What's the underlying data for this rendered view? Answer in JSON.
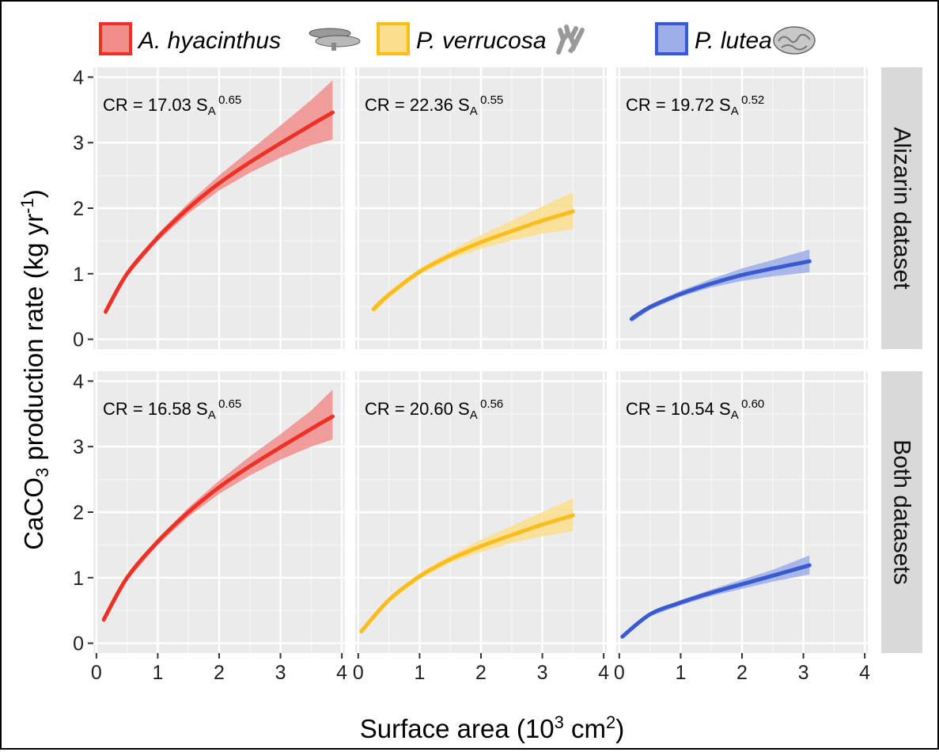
{
  "chart_data": {
    "type": "line",
    "layout": "faceted grid, 2 rows x 3 columns",
    "xlabel": "Surface area (10",
    "xlabel_sup": "3",
    "xlabel_mid": " cm",
    "xlabel_sup2": "2",
    "xlabel_end": ")",
    "ylabel_pre": "CaCO",
    "ylabel_sub": "3",
    "ylabel_mid": " production rate (kg yr",
    "ylabel_sup": "-1",
    "ylabel_end": ")",
    "xlim": [
      -0.05,
      4.05
    ],
    "ylim": [
      -0.15,
      4.15
    ],
    "xticks": [
      0,
      1,
      2,
      3,
      4
    ],
    "yticks": [
      0,
      1,
      2,
      3,
      4
    ],
    "tick_labels": [
      "0",
      "1",
      "2",
      "3",
      "4"
    ],
    "grid": true,
    "legend_position": "top",
    "legend": [
      {
        "label": "A. hyacinthus",
        "color": "#ee3126",
        "fill": "#f08e8c",
        "icon": "table-coral-icon"
      },
      {
        "label": "P. verrucosa",
        "color": "#fbbd1d",
        "fill": "#fbdf8e",
        "icon": "branching-coral-icon"
      },
      {
        "label": "P. lutea",
        "color": "#3a5bcf",
        "fill": "#9daee8",
        "icon": "brain-coral-icon"
      }
    ],
    "rows": [
      "Alizarin dataset",
      "Both datasets"
    ],
    "panels": [
      {
        "row": 0,
        "col": 0,
        "species": "A. hyacinthus",
        "eq_prefix": "CR = ",
        "coef": "17.03",
        "var": "S",
        "var_sub": "A",
        "exponent": "0.65",
        "x": [
          0.15,
          0.5,
          1.0,
          1.5,
          2.0,
          2.5,
          3.0,
          3.5,
          3.85
        ],
        "y": [
          0.42,
          1.0,
          1.55,
          2.0,
          2.38,
          2.7,
          2.99,
          3.27,
          3.46
        ],
        "lower": [
          0.36,
          0.96,
          1.5,
          1.92,
          2.27,
          2.54,
          2.77,
          2.96,
          3.05
        ],
        "upper": [
          0.48,
          1.05,
          1.61,
          2.08,
          2.5,
          2.88,
          3.26,
          3.65,
          3.95
        ]
      },
      {
        "row": 0,
        "col": 1,
        "species": "P. verrucosa",
        "eq_prefix": "CR = ",
        "coef": "22.36",
        "var": "S",
        "var_sub": "A",
        "exponent": "0.55",
        "x": [
          0.25,
          0.5,
          1.0,
          1.5,
          2.0,
          2.5,
          3.0,
          3.5
        ],
        "y": [
          0.46,
          0.68,
          1.03,
          1.28,
          1.48,
          1.65,
          1.81,
          1.95
        ],
        "lower": [
          0.4,
          0.63,
          0.99,
          1.22,
          1.38,
          1.51,
          1.61,
          1.68
        ],
        "upper": [
          0.52,
          0.73,
          1.08,
          1.35,
          1.59,
          1.81,
          2.03,
          2.24
        ]
      },
      {
        "row": 0,
        "col": 2,
        "species": "P. lutea",
        "eq_prefix": "CR = ",
        "coef": "19.72",
        "var": "S",
        "var_sub": "A",
        "exponent": "0.52",
        "x": [
          0.2,
          0.5,
          1.0,
          1.5,
          2.0,
          2.5,
          3.1
        ],
        "y": [
          0.31,
          0.49,
          0.69,
          0.85,
          0.98,
          1.08,
          1.19
        ],
        "lower": [
          0.26,
          0.45,
          0.65,
          0.79,
          0.89,
          0.96,
          1.02
        ],
        "upper": [
          0.36,
          0.53,
          0.74,
          0.92,
          1.08,
          1.21,
          1.37
        ]
      },
      {
        "row": 1,
        "col": 0,
        "species": "A. hyacinthus",
        "eq_prefix": "CR = ",
        "coef": "16.58",
        "var": "S",
        "var_sub": "A",
        "exponent": "0.65",
        "x": [
          0.12,
          0.5,
          1.0,
          1.5,
          2.0,
          2.5,
          3.0,
          3.5,
          3.85
        ],
        "y": [
          0.36,
          1.0,
          1.55,
          2.0,
          2.38,
          2.7,
          2.99,
          3.27,
          3.46
        ],
        "lower": [
          0.31,
          0.96,
          1.5,
          1.93,
          2.28,
          2.56,
          2.8,
          3.0,
          3.11
        ],
        "upper": [
          0.41,
          1.04,
          1.6,
          2.07,
          2.48,
          2.85,
          3.19,
          3.55,
          3.87
        ]
      },
      {
        "row": 1,
        "col": 1,
        "species": "P. verrucosa",
        "eq_prefix": "CR = ",
        "coef": "20.60",
        "var": "S",
        "var_sub": "A",
        "exponent": "0.56",
        "x": [
          0.05,
          0.5,
          1.0,
          1.5,
          2.0,
          2.5,
          3.0,
          3.5
        ],
        "y": [
          0.18,
          0.66,
          1.02,
          1.28,
          1.48,
          1.65,
          1.81,
          1.95
        ],
        "lower": [
          0.14,
          0.62,
          0.98,
          1.23,
          1.39,
          1.53,
          1.63,
          1.71
        ],
        "upper": [
          0.22,
          0.7,
          1.07,
          1.34,
          1.58,
          1.79,
          2.0,
          2.21
        ]
      },
      {
        "row": 1,
        "col": 2,
        "species": "P. lutea",
        "eq_prefix": "CR = ",
        "coef": "10.54",
        "var": "S",
        "var_sub": "A",
        "exponent": "0.60",
        "x": [
          0.05,
          0.5,
          1.0,
          1.5,
          2.0,
          2.5,
          3.1
        ],
        "y": [
          0.1,
          0.44,
          0.62,
          0.77,
          0.9,
          1.03,
          1.19
        ],
        "lower": [
          0.08,
          0.41,
          0.58,
          0.72,
          0.83,
          0.94,
          1.05
        ],
        "upper": [
          0.12,
          0.47,
          0.66,
          0.82,
          0.97,
          1.12,
          1.34
        ]
      }
    ]
  }
}
